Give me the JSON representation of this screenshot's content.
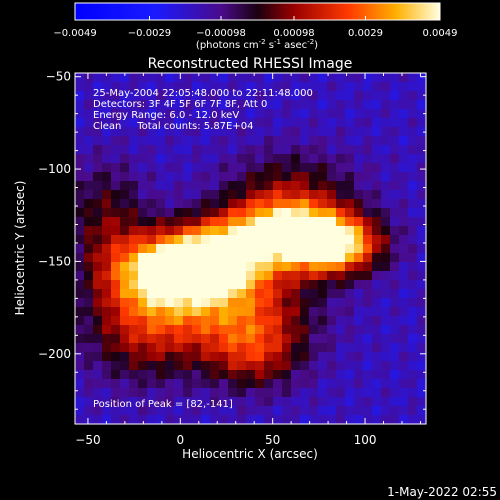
{
  "chart_data": {
    "type": "heatmap",
    "title": "Reconstructed RHESSI Image",
    "xlabel": "Heliocentric X (arcsec)",
    "ylabel": "Heliocentric Y (arcsec)",
    "xlim": [
      -57,
      133
    ],
    "ylim": [
      -238,
      -48
    ],
    "x_ticks": [
      -50,
      0,
      50,
      100
    ],
    "y_ticks": [
      -50,
      -100,
      -150,
      -200
    ],
    "colorbar": {
      "min": -0.0049,
      "max": 0.0049,
      "ticks": [
        "-0.0049",
        "-0.0029",
        "-0.00098",
        "0.00098",
        "0.0029",
        "0.0049"
      ],
      "label_prefix": "(photons cm",
      "label_exp1": "-2",
      "label_mid": " s",
      "label_exp2": "-1",
      "label_mid2": " asec",
      "label_exp3": "-2",
      "label_suffix": ")"
    },
    "annotations": [
      "25-May-2004 22:05:48.000 to 22:11:48.000",
      "Detectors: 3F 4F 5F 6F 7F 8F, Att 0",
      "Energy Range: 6.0 - 12.0 keV",
      "Clean     Total counts: 5.87E+04"
    ],
    "peak_label": "Position of Peak = [82,-141]",
    "peak": [
      82,
      -141
    ],
    "sources": [
      {
        "x": 82,
        "y": -141,
        "sx": 18,
        "sy": 11,
        "amp": 1.0
      },
      {
        "x": 55,
        "y": -133,
        "sx": 22,
        "sy": 12,
        "amp": 0.85
      },
      {
        "x": 20,
        "y": -148,
        "sx": 20,
        "sy": 13,
        "amp": 0.85
      },
      {
        "x": -10,
        "y": -155,
        "sx": 22,
        "sy": 14,
        "amp": 0.8
      },
      {
        "x": 30,
        "y": -175,
        "sx": 28,
        "sy": 18,
        "amp": 0.55
      },
      {
        "x": -20,
        "y": -185,
        "sx": 22,
        "sy": 20,
        "amp": 0.45
      },
      {
        "x": 40,
        "y": -200,
        "sx": 18,
        "sy": 14,
        "amp": 0.4
      },
      {
        "x": 60,
        "y": -110,
        "sx": 25,
        "sy": 15,
        "amp": 0.3
      },
      {
        "x": -40,
        "y": -125,
        "sx": 15,
        "sy": 20,
        "amp": 0.3
      }
    ],
    "background_level": -0.35
  },
  "footer": {
    "timestamp": "1-May-2022 02:55"
  }
}
